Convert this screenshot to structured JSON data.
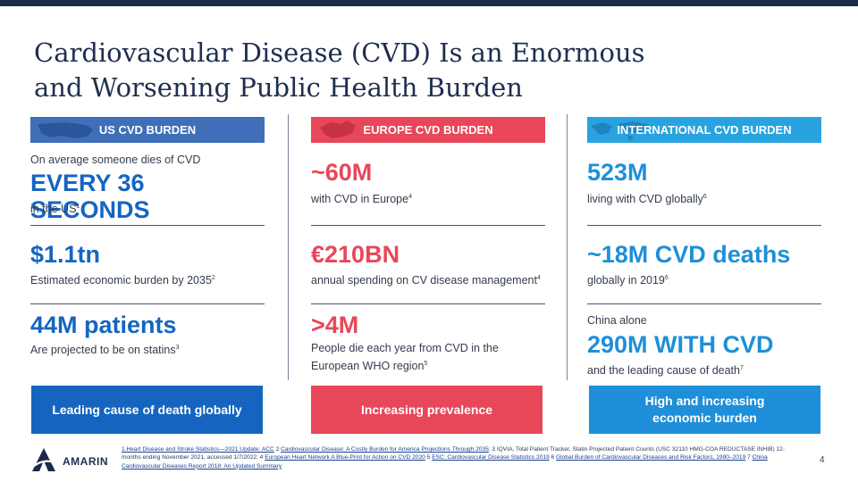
{
  "title_lines": [
    "Cardiovascular Disease (CVD) Is an Enormous",
    "and Worsening Public Health Burden"
  ],
  "columns": {
    "us": {
      "header": "US CVD BURDEN",
      "intro": "On average someone dies of CVD",
      "headline": "EVERY 36 SECONDS",
      "headline_sub": "in the US",
      "headline_sub_sup": "1",
      "stat2_value": "$1.1tn",
      "stat2_desc": "Estimated economic burden by 2035",
      "stat2_sup": "2",
      "stat3_value": "44M patients",
      "stat3_desc": "Are projected to be on statins",
      "stat3_sup": "3",
      "footer": "Leading cause of death globally"
    },
    "europe": {
      "header": "EUROPE CVD BURDEN",
      "stat1_value": "~60M",
      "stat1_desc": "with CVD in Europe",
      "stat1_sup": "4",
      "stat2_value": "€210BN",
      "stat2_desc": "annual spending on CV disease management",
      "stat2_sup": "4",
      "stat3_value": ">4M",
      "stat3_desc_line1": "People die each year from CVD in the",
      "stat3_desc_line2": "European WHO region",
      "stat3_sup": "5",
      "footer": "Increasing prevalence"
    },
    "international": {
      "header": "INTERNATIONAL CVD BURDEN",
      "stat1_value": "523M",
      "stat1_desc": "living with CVD globally",
      "stat1_sup": "6",
      "stat2_value": "~18M CVD deaths",
      "stat2_desc": "globally in 2019",
      "stat2_sup": "6",
      "stat3_intro": "China alone",
      "stat3_value": "290M WITH CVD",
      "stat3_desc": "and the leading cause of death",
      "stat3_sup": "7",
      "footer_line1": "High and increasing",
      "footer_line2": "economic burden"
    }
  },
  "brand": "AMARIN",
  "page_number": "4",
  "references": {
    "r1": "1.Heart Disease and Stroke Statistics—2021 Update: ACC",
    "r1b": " 2 ",
    "r2": "Cardiovascular Disease: A Costly Burden for America Projections Through 2035",
    "r3": "; 3 IQVIA, Total Patient Tracker, Statin Projected Patient Counts (USC 32110 HMG-COA REDUCTASE INHIB) 12-months ending November 2021, accessed 1/7/2022; 4 ",
    "r4": "European Heart Network A Blue-Print for Action on CVD 2020",
    "r5pre": " 5 ",
    "r5": "ESC: Cardiovascular Disease Statistics 2019",
    "r6pre": " 6  ",
    "r6": "Global Burden of Cardiovascular Diseases and Risk Factors, 1990–2019",
    "r7pre": " 7 ",
    "r7": "China Cardiovascular Diseases Report 2018: An Updated Summary"
  },
  "colors": {
    "navy": "#1b2a4a",
    "us_blue": "#1565c0",
    "europe_red": "#e8475a",
    "intl_blue": "#1e8fd8"
  }
}
